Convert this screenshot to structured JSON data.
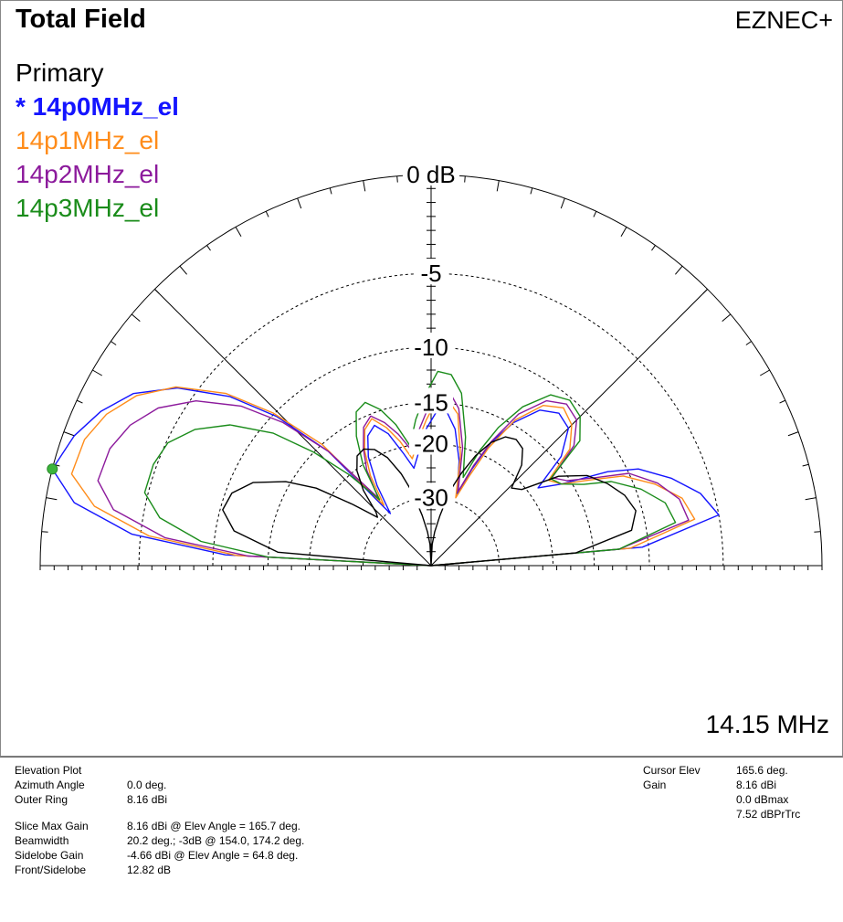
{
  "header": {
    "title": "Total Field",
    "brand": "EZNEC+"
  },
  "frequency_label": "14.15 MHz",
  "legend": {
    "primary_label": "Primary",
    "items": [
      {
        "label": "* 14p0MHz_el",
        "color": "#1414ff",
        "bold": true
      },
      {
        "label": "14p1MHz_el",
        "color": "#ff8c1a",
        "bold": false
      },
      {
        "label": "14p2MHz_el",
        "color": "#8c1a9c",
        "bold": false
      },
      {
        "label": "14p3MHz_el",
        "color": "#1a8c1a",
        "bold": false
      }
    ]
  },
  "ring_labels": [
    "0 dB",
    "-5",
    "-10",
    "-15",
    "-20",
    "-30"
  ],
  "cursor_marker_color": "#3cb43c",
  "chart_data": {
    "type": "polar",
    "plot": "elevation",
    "angle_range_deg": [
      0,
      180
    ],
    "units": "dBmax",
    "series": [
      {
        "name": "14p0MHz_el",
        "color": "#1414ff",
        "points": [
          [
            0,
            -99
          ],
          [
            5,
            -10.5
          ],
          [
            10,
            -5.0
          ],
          [
            15,
            -5.8
          ],
          [
            20,
            -7.3
          ],
          [
            25,
            -9.2
          ],
          [
            28,
            -11.5
          ],
          [
            32,
            -16.0
          ],
          [
            36,
            -18.6
          ],
          [
            40,
            -14.3
          ],
          [
            45,
            -12.0
          ],
          [
            50,
            -11.6
          ],
          [
            55,
            -12.4
          ],
          [
            60,
            -14.8
          ],
          [
            64,
            -18.0
          ],
          [
            67,
            -22.5
          ],
          [
            70,
            -28.0
          ],
          [
            75,
            -22.0
          ],
          [
            80,
            -17.8
          ],
          [
            84,
            -16.0
          ],
          [
            88,
            -16.0
          ],
          [
            92,
            -18.0
          ],
          [
            96,
            -21.0
          ],
          [
            100,
            -23.6
          ],
          [
            104,
            -20.8
          ],
          [
            108,
            -17.8
          ],
          [
            112,
            -16.3
          ],
          [
            116,
            -17.1
          ],
          [
            120,
            -19.5
          ],
          [
            124,
            -24.0
          ],
          [
            128,
            -30.5
          ],
          [
            132,
            -16.0
          ],
          [
            136,
            -10.3
          ],
          [
            140,
            -6.8
          ],
          [
            145,
            -4.0
          ],
          [
            150,
            -2.2
          ],
          [
            155,
            -1.2
          ],
          [
            160,
            -0.5
          ],
          [
            165.7,
            0.0
          ],
          [
            170,
            -1.3
          ],
          [
            174,
            -4.5
          ],
          [
            177,
            -11.0
          ],
          [
            180,
            -99
          ]
        ]
      },
      {
        "name": "14p1MHz_el",
        "color": "#ff8c1a",
        "points": [
          [
            0,
            -99
          ],
          [
            5,
            -11.5
          ],
          [
            10,
            -6.5
          ],
          [
            15,
            -7.0
          ],
          [
            20,
            -8.5
          ],
          [
            25,
            -10.5
          ],
          [
            28,
            -13.0
          ],
          [
            32,
            -16.0
          ],
          [
            36,
            -17.0
          ],
          [
            40,
            -13.2
          ],
          [
            45,
            -11.6
          ],
          [
            50,
            -11.0
          ],
          [
            55,
            -11.9
          ],
          [
            60,
            -14.5
          ],
          [
            64,
            -18.8
          ],
          [
            67,
            -24.0
          ],
          [
            70,
            -29.0
          ],
          [
            75,
            -21.2
          ],
          [
            80,
            -16.0
          ],
          [
            84,
            -14.7
          ],
          [
            88,
            -14.7
          ],
          [
            92,
            -17.0
          ],
          [
            96,
            -19.5
          ],
          [
            100,
            -22.0
          ],
          [
            104,
            -19.2
          ],
          [
            108,
            -17.0
          ],
          [
            112,
            -15.5
          ],
          [
            116,
            -16.3
          ],
          [
            120,
            -18.5
          ],
          [
            124,
            -22.0
          ],
          [
            128,
            -28.0
          ],
          [
            132,
            -15.0
          ],
          [
            136,
            -9.9
          ],
          [
            140,
            -6.5
          ],
          [
            145,
            -3.9
          ],
          [
            150,
            -2.4
          ],
          [
            155,
            -1.5
          ],
          [
            160,
            -1.0
          ],
          [
            165.7,
            -0.9
          ],
          [
            170,
            -2.3
          ],
          [
            174,
            -5.5
          ],
          [
            177,
            -12.0
          ],
          [
            180,
            -99
          ]
        ]
      },
      {
        "name": "14p2MHz_el",
        "color": "#8c1a9c",
        "points": [
          [
            0,
            -99
          ],
          [
            5,
            -12.5
          ],
          [
            10,
            -6.9
          ],
          [
            15,
            -7.2
          ],
          [
            20,
            -8.3
          ],
          [
            25,
            -10.0
          ],
          [
            28,
            -12.6
          ],
          [
            32,
            -15.3
          ],
          [
            36,
            -16.5
          ],
          [
            40,
            -12.7
          ],
          [
            45,
            -11.0
          ],
          [
            50,
            -10.6
          ],
          [
            55,
            -11.4
          ],
          [
            60,
            -13.8
          ],
          [
            64,
            -17.8
          ],
          [
            67,
            -22.0
          ],
          [
            70,
            -27.5
          ],
          [
            75,
            -20.0
          ],
          [
            80,
            -15.4
          ],
          [
            84,
            -13.8
          ],
          [
            88,
            -13.8
          ],
          [
            92,
            -16.2
          ],
          [
            96,
            -18.6
          ],
          [
            100,
            -20.5
          ],
          [
            104,
            -18.2
          ],
          [
            108,
            -16.4
          ],
          [
            112,
            -15.2
          ],
          [
            116,
            -16.0
          ],
          [
            120,
            -18.2
          ],
          [
            124,
            -21.0
          ],
          [
            128,
            -26.0
          ],
          [
            132,
            -16.0
          ],
          [
            136,
            -11.0
          ],
          [
            140,
            -7.8
          ],
          [
            145,
            -5.3
          ],
          [
            150,
            -3.7
          ],
          [
            155,
            -2.8
          ],
          [
            160,
            -2.3
          ],
          [
            165.7,
            -2.2
          ],
          [
            170,
            -3.3
          ],
          [
            174,
            -6.5
          ],
          [
            177,
            -13.0
          ],
          [
            180,
            -99
          ]
        ]
      },
      {
        "name": "14p3MHz_el",
        "color": "#1a8c1a",
        "points": [
          [
            0,
            -99
          ],
          [
            5,
            -12.5
          ],
          [
            10,
            -7.8
          ],
          [
            15,
            -8.2
          ],
          [
            20,
            -9.6
          ],
          [
            25,
            -11.6
          ],
          [
            28,
            -14.0
          ],
          [
            32,
            -16.0
          ],
          [
            36,
            -16.7
          ],
          [
            40,
            -12.0
          ],
          [
            45,
            -10.6
          ],
          [
            50,
            -10.2
          ],
          [
            55,
            -10.8
          ],
          [
            60,
            -13.0
          ],
          [
            64,
            -16.0
          ],
          [
            67,
            -19.5
          ],
          [
            70,
            -24.5
          ],
          [
            75,
            -18.5
          ],
          [
            80,
            -13.8
          ],
          [
            84,
            -12.2
          ],
          [
            88,
            -12.0
          ],
          [
            92,
            -14.2
          ],
          [
            96,
            -16.8
          ],
          [
            100,
            -20.0
          ],
          [
            104,
            -17.0
          ],
          [
            108,
            -14.9
          ],
          [
            112,
            -13.7
          ],
          [
            116,
            -14.2
          ],
          [
            120,
            -16.5
          ],
          [
            124,
            -20.0
          ],
          [
            128,
            -26.5
          ],
          [
            132,
            -20.0
          ],
          [
            136,
            -15.0
          ],
          [
            140,
            -11.0
          ],
          [
            145,
            -8.0
          ],
          [
            150,
            -6.2
          ],
          [
            155,
            -5.1
          ],
          [
            160,
            -4.8
          ],
          [
            165.7,
            -4.8
          ],
          [
            170,
            -6.0
          ],
          [
            174,
            -9.0
          ],
          [
            177,
            -15.0
          ],
          [
            180,
            -99
          ]
        ]
      },
      {
        "name": "",
        "color": "#000000",
        "points": [
          [
            0,
            -99
          ],
          [
            5,
            -17.0
          ],
          [
            10,
            -11.2
          ],
          [
            15,
            -10.5
          ],
          [
            20,
            -11.0
          ],
          [
            25,
            -12.0
          ],
          [
            30,
            -13.3
          ],
          [
            35,
            -15.8
          ],
          [
            40,
            -20.5
          ],
          [
            44,
            -21.5
          ],
          [
            48,
            -18.2
          ],
          [
            52,
            -16.6
          ],
          [
            56,
            -16.2
          ],
          [
            60,
            -16.6
          ],
          [
            64,
            -18.0
          ],
          [
            68,
            -20.5
          ],
          [
            72,
            -24.0
          ],
          [
            76,
            -28.0
          ],
          [
            80,
            -35.0
          ],
          [
            84,
            -42.0
          ],
          [
            87,
            -50.0
          ],
          [
            90,
            -99
          ],
          [
            93,
            -50.0
          ],
          [
            96,
            -42.0
          ],
          [
            100,
            -35.0
          ],
          [
            104,
            -28.5
          ],
          [
            108,
            -24.0
          ],
          [
            112,
            -20.8
          ],
          [
            116,
            -19.0
          ],
          [
            120,
            -18.3
          ],
          [
            124,
            -18.6
          ],
          [
            128,
            -20.2
          ],
          [
            132,
            -23.2
          ],
          [
            136,
            -28.0
          ],
          [
            138,
            -29.0
          ],
          [
            142,
            -23.5
          ],
          [
            146,
            -17.8
          ],
          [
            150,
            -14.5
          ],
          [
            155,
            -11.8
          ],
          [
            160,
            -10.5
          ],
          [
            165,
            -10.2
          ],
          [
            170,
            -11.5
          ],
          [
            175,
            -16.0
          ],
          [
            180,
            -99
          ]
        ]
      }
    ]
  },
  "info": {
    "left": [
      {
        "label": "Elevation Plot",
        "value": ""
      },
      {
        "label": "Azimuth Angle",
        "value": "0.0 deg."
      },
      {
        "label": "Outer Ring",
        "value": "8.16 dBi"
      },
      {
        "label": "",
        "value": ""
      },
      {
        "label": "Slice Max Gain",
        "value": "8.16 dBi @ Elev Angle = 165.7 deg."
      },
      {
        "label": "Beamwidth",
        "value": "20.2 deg.; -3dB @ 154.0, 174.2 deg."
      },
      {
        "label": "Sidelobe Gain",
        "value": "-4.66 dBi @ Elev Angle = 64.8 deg."
      },
      {
        "label": "Front/Sidelobe",
        "value": "12.82 dB"
      }
    ],
    "right": [
      {
        "label": "Cursor Elev",
        "value": "165.6 deg."
      },
      {
        "label": "Gain",
        "value": "8.16 dBi"
      },
      {
        "label": "",
        "value": "0.0 dBmax"
      },
      {
        "label": "",
        "value": "7.52 dBPrTrc"
      }
    ]
  }
}
